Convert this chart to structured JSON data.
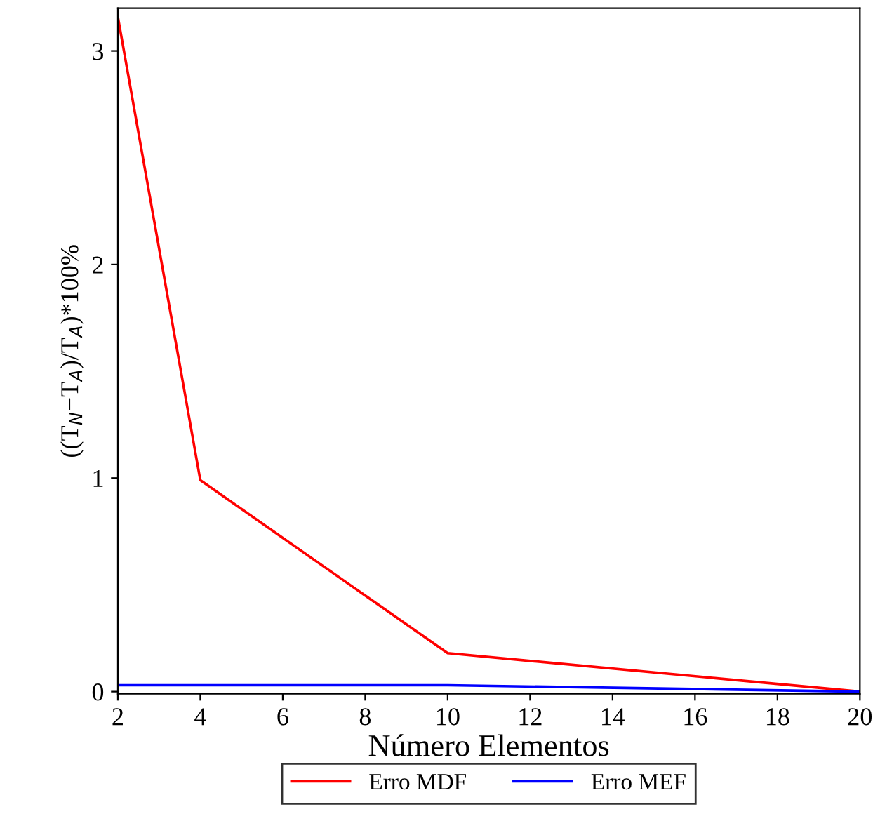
{
  "chart_data": {
    "type": "line",
    "xlabel": "Número Elementos",
    "ylabel": "((T$_{N}$−T$_{A}$)/T$_{A}$)*100%",
    "xlim": [
      2,
      20
    ],
    "xticks": [
      2,
      4,
      6,
      8,
      10,
      12,
      14,
      16,
      18,
      20
    ],
    "ylim": [
      -0.01,
      3.2
    ],
    "yticks": [
      0,
      1,
      2,
      3
    ],
    "series": [
      {
        "name": "Erro MDF",
        "color": "#ff0000",
        "x": [
          2,
          4,
          10,
          20
        ],
        "values": [
          3.16,
          0.99,
          0.18,
          0
        ]
      },
      {
        "name": "Erro MEF",
        "color": "#0000ff",
        "x": [
          2,
          4,
          10,
          20
        ],
        "values": [
          0.03,
          0.03,
          0.03,
          0
        ]
      }
    ],
    "grid": false,
    "legend": "bottom",
    "marker": "none",
    "line_style": "solid"
  }
}
